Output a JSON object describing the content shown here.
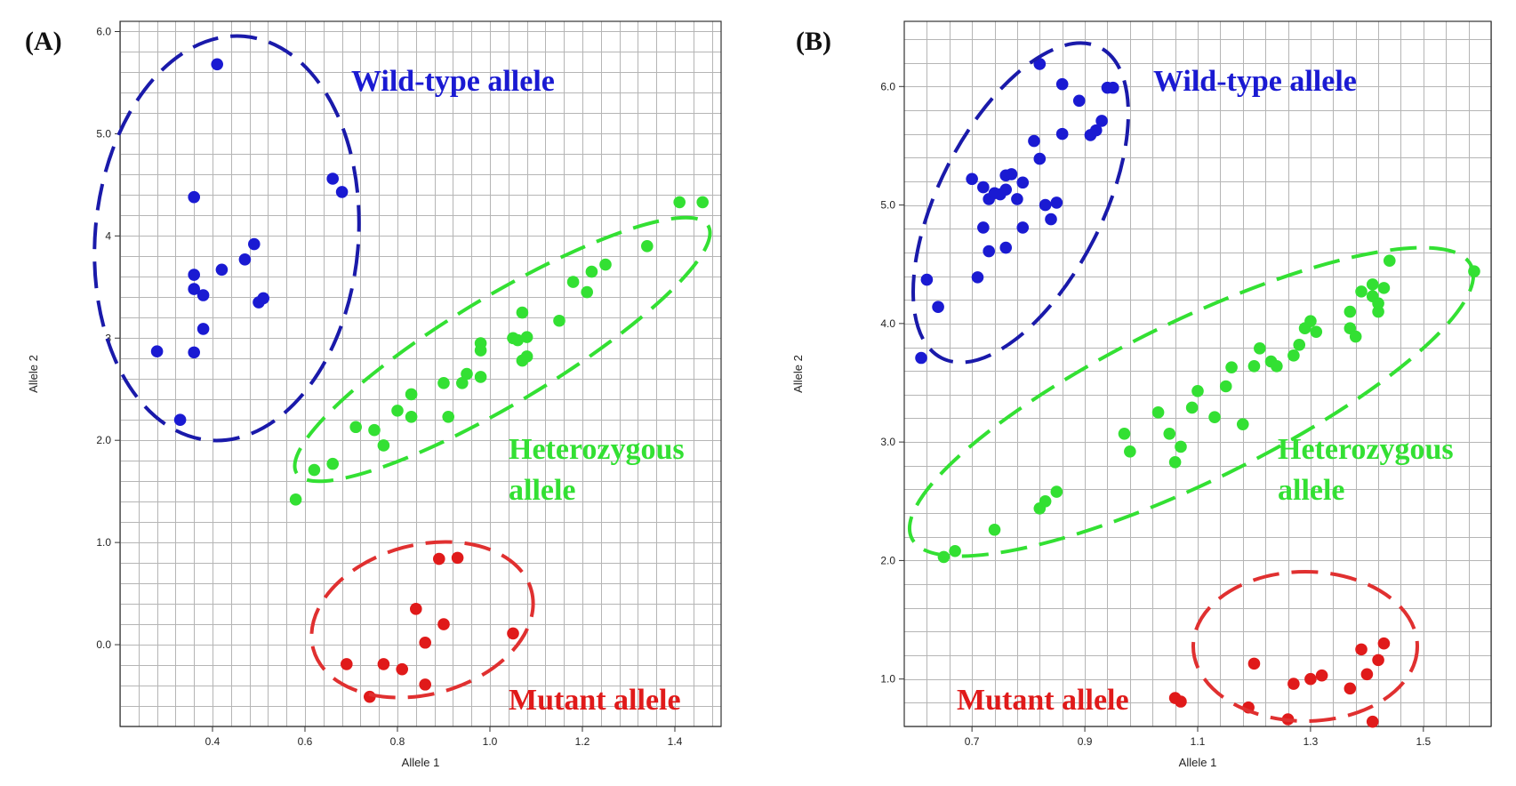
{
  "colors": {
    "wild": "#1a1ad2",
    "het": "#33e033",
    "mut": "#e01a1a",
    "wild_ring": "#1a1aaa",
    "het_ring": "#33e033",
    "mut_ring": "#e03030",
    "grid": "#b5b5b5"
  },
  "chart_data": [
    {
      "type": "scatter",
      "panel_label": "(A)",
      "xlabel": "Allele 1",
      "ylabel": "Allele 2",
      "xlim": [
        0.2,
        1.5
      ],
      "ylim": [
        -0.8,
        6.1
      ],
      "xticks": [
        {
          "v": 0.4,
          "label": "0.4"
        },
        {
          "v": 0.6,
          "label": "0.6"
        },
        {
          "v": 0.8,
          "label": "0.8"
        },
        {
          "v": 1.0,
          "label": "1.0"
        },
        {
          "v": 1.2,
          "label": "1.2"
        },
        {
          "v": 1.4,
          "label": "1.4"
        }
      ],
      "yticks": [
        {
          "v": 0.0,
          "label": "0.0"
        },
        {
          "v": 1.0,
          "label": "1.0"
        },
        {
          "v": 2.0,
          "label": "2.0"
        },
        {
          "v": 3.0,
          "label": "3"
        },
        {
          "v": 4.0,
          "label": "4"
        },
        {
          "v": 5.0,
          "label": "5.0"
        },
        {
          "v": 6.0,
          "label": "6.0"
        }
      ],
      "series": [
        {
          "name": "Wild-type allele",
          "color": "wild",
          "points": [
            [
              0.41,
              5.68
            ],
            [
              0.36,
              4.38
            ],
            [
              0.36,
              3.62
            ],
            [
              0.36,
              3.48
            ],
            [
              0.38,
              3.42
            ],
            [
              0.42,
              3.67
            ],
            [
              0.47,
              3.77
            ],
            [
              0.49,
              3.92
            ],
            [
              0.5,
              3.35
            ],
            [
              0.51,
              3.39
            ],
            [
              0.38,
              3.09
            ],
            [
              0.28,
              2.87
            ],
            [
              0.36,
              2.86
            ],
            [
              0.33,
              2.2
            ],
            [
              0.66,
              4.56
            ],
            [
              0.68,
              4.43
            ]
          ]
        },
        {
          "name": "Heterozygous allele",
          "color": "het",
          "points": [
            [
              0.58,
              1.42
            ],
            [
              0.62,
              1.71
            ],
            [
              0.66,
              1.77
            ],
            [
              0.71,
              2.13
            ],
            [
              0.75,
              2.1
            ],
            [
              0.77,
              1.95
            ],
            [
              0.8,
              2.29
            ],
            [
              0.83,
              2.45
            ],
            [
              0.83,
              2.23
            ],
            [
              0.9,
              2.56
            ],
            [
              0.91,
              2.23
            ],
            [
              0.94,
              2.56
            ],
            [
              0.95,
              2.65
            ],
            [
              0.98,
              2.95
            ],
            [
              0.98,
              2.88
            ],
            [
              0.98,
              2.62
            ],
            [
              1.05,
              3.0
            ],
            [
              1.06,
              2.98
            ],
            [
              1.07,
              3.25
            ],
            [
              1.08,
              3.01
            ],
            [
              1.07,
              2.78
            ],
            [
              1.08,
              2.82
            ],
            [
              1.15,
              3.17
            ],
            [
              1.18,
              3.55
            ],
            [
              1.21,
              3.45
            ],
            [
              1.22,
              3.65
            ],
            [
              1.25,
              3.72
            ],
            [
              1.34,
              3.9
            ],
            [
              1.41,
              4.33
            ],
            [
              1.46,
              4.33
            ]
          ]
        },
        {
          "name": "Mutant allele",
          "color": "mut",
          "points": [
            [
              0.89,
              0.84
            ],
            [
              0.93,
              0.85
            ],
            [
              0.84,
              0.35
            ],
            [
              0.9,
              0.2
            ],
            [
              0.86,
              0.02
            ],
            [
              1.05,
              0.11
            ],
            [
              0.69,
              -0.19
            ],
            [
              0.77,
              -0.19
            ],
            [
              0.81,
              -0.24
            ],
            [
              0.86,
              -0.39
            ],
            [
              0.74,
              -0.51
            ]
          ]
        }
      ],
      "cluster_labels": [
        {
          "lines": [
            "Wild-type allele"
          ],
          "color": "wild"
        },
        {
          "lines": [
            "Heterozygous",
            "allele"
          ],
          "color": "het"
        },
        {
          "lines": [
            "Mutant allele"
          ],
          "color": "mut"
        }
      ]
    },
    {
      "type": "scatter",
      "panel_label": "(B)",
      "xlabel": "Allele 1",
      "ylabel": "Allele 2",
      "xlim": [
        0.58,
        1.62
      ],
      "ylim": [
        0.6,
        6.55
      ],
      "xticks": [
        {
          "v": 0.7,
          "label": "0.7"
        },
        {
          "v": 0.9,
          "label": "0.9"
        },
        {
          "v": 1.1,
          "label": "1.1"
        },
        {
          "v": 1.3,
          "label": "1.3"
        },
        {
          "v": 1.5,
          "label": "1.5"
        }
      ],
      "yticks": [
        {
          "v": 1.0,
          "label": "1.0"
        },
        {
          "v": 2.0,
          "label": "2.0"
        },
        {
          "v": 3.0,
          "label": "3.0"
        },
        {
          "v": 4.0,
          "label": "4.0"
        },
        {
          "v": 5.0,
          "label": "5.0"
        },
        {
          "v": 6.0,
          "label": "6.0"
        }
      ],
      "series": [
        {
          "name": "Wild-type allele",
          "color": "wild",
          "points": [
            [
              0.82,
              6.19
            ],
            [
              0.86,
              6.02
            ],
            [
              0.89,
              5.88
            ],
            [
              0.94,
              5.99
            ],
            [
              0.95,
              5.99
            ],
            [
              0.86,
              5.6
            ],
            [
              0.91,
              5.59
            ],
            [
              0.92,
              5.63
            ],
            [
              0.93,
              5.71
            ],
            [
              0.81,
              5.54
            ],
            [
              0.82,
              5.39
            ],
            [
              0.7,
              5.22
            ],
            [
              0.72,
              5.15
            ],
            [
              0.73,
              5.05
            ],
            [
              0.74,
              5.1
            ],
            [
              0.75,
              5.09
            ],
            [
              0.76,
              5.25
            ],
            [
              0.77,
              5.26
            ],
            [
              0.76,
              5.13
            ],
            [
              0.78,
              5.05
            ],
            [
              0.79,
              5.19
            ],
            [
              0.83,
              5.0
            ],
            [
              0.85,
              5.02
            ],
            [
              0.72,
              4.81
            ],
            [
              0.76,
              4.64
            ],
            [
              0.73,
              4.61
            ],
            [
              0.79,
              4.81
            ],
            [
              0.84,
              4.88
            ],
            [
              0.71,
              4.39
            ],
            [
              0.62,
              4.37
            ],
            [
              0.64,
              4.14
            ],
            [
              0.61,
              3.71
            ]
          ]
        },
        {
          "name": "Heterozygous allele",
          "color": "het",
          "points": [
            [
              0.65,
              2.03
            ],
            [
              0.67,
              2.08
            ],
            [
              0.74,
              2.26
            ],
            [
              0.82,
              2.44
            ],
            [
              0.83,
              2.5
            ],
            [
              0.85,
              2.58
            ],
            [
              0.97,
              3.07
            ],
            [
              0.98,
              2.92
            ],
            [
              1.03,
              3.25
            ],
            [
              1.05,
              3.07
            ],
            [
              1.06,
              2.83
            ],
            [
              1.07,
              2.96
            ],
            [
              1.09,
              3.29
            ],
            [
              1.1,
              3.43
            ],
            [
              1.13,
              3.21
            ],
            [
              1.15,
              3.47
            ],
            [
              1.16,
              3.63
            ],
            [
              1.18,
              3.15
            ],
            [
              1.2,
              3.64
            ],
            [
              1.21,
              3.79
            ],
            [
              1.23,
              3.68
            ],
            [
              1.24,
              3.64
            ],
            [
              1.27,
              3.73
            ],
            [
              1.28,
              3.82
            ],
            [
              1.29,
              3.96
            ],
            [
              1.3,
              4.02
            ],
            [
              1.31,
              3.93
            ],
            [
              1.37,
              4.1
            ],
            [
              1.37,
              3.96
            ],
            [
              1.38,
              3.89
            ],
            [
              1.39,
              4.27
            ],
            [
              1.41,
              4.23
            ],
            [
              1.41,
              4.33
            ],
            [
              1.42,
              4.1
            ],
            [
              1.42,
              4.17
            ],
            [
              1.43,
              4.3
            ],
            [
              1.44,
              4.53
            ],
            [
              1.59,
              4.44
            ]
          ]
        },
        {
          "name": "Mutant allele",
          "color": "mut",
          "points": [
            [
              1.06,
              0.84
            ],
            [
              1.07,
              0.81
            ],
            [
              1.2,
              1.13
            ],
            [
              1.19,
              0.76
            ],
            [
              1.26,
              0.66
            ],
            [
              1.27,
              0.96
            ],
            [
              1.3,
              1.0
            ],
            [
              1.32,
              1.03
            ],
            [
              1.37,
              0.92
            ],
            [
              1.39,
              1.25
            ],
            [
              1.4,
              1.04
            ],
            [
              1.41,
              0.64
            ],
            [
              1.42,
              1.16
            ],
            [
              1.43,
              1.3
            ]
          ]
        }
      ],
      "cluster_labels": [
        {
          "lines": [
            "Wild-type allele"
          ],
          "color": "wild"
        },
        {
          "lines": [
            "Heterozygous",
            "allele"
          ],
          "color": "het"
        },
        {
          "lines": [
            "Mutant allele"
          ],
          "color": "mut"
        }
      ]
    }
  ]
}
